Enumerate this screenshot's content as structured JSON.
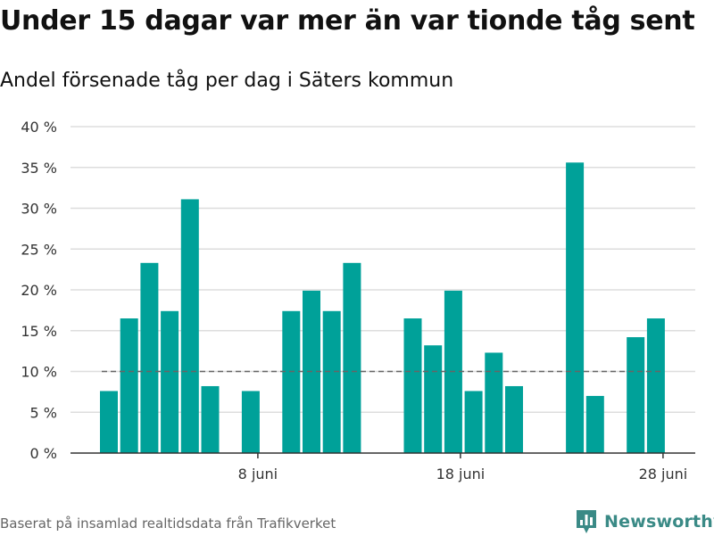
{
  "title": "Under 15 dagar var mer än var tionde tåg sent",
  "subtitle": "Andel försenade tåg per dag i Säters kommun",
  "source": "Baserat på insamlad realtidsdata från Trafikverket",
  "brand": {
    "name": "Newsworthy",
    "icon": "newsworthy-logo-icon"
  },
  "colors": {
    "bar": "#00a199",
    "grid": "#dddddd",
    "reference": "#666666",
    "axis": "#333333"
  },
  "chart_data": {
    "type": "bar",
    "categories": [
      "1 juni",
      "2 juni",
      "3 juni",
      "4 juni",
      "5 juni",
      "6 juni",
      "7 juni",
      "8 juni",
      "9 juni",
      "10 juni",
      "11 juni",
      "12 juni",
      "13 juni",
      "14 juni",
      "15 juni",
      "16 juni",
      "17 juni",
      "18 juni",
      "19 juni",
      "20 juni",
      "21 juni",
      "22 juni",
      "23 juni",
      "24 juni",
      "25 juni",
      "26 juni",
      "27 juni",
      "28 juni",
      "29 juni"
    ],
    "values": [
      7.6,
      16.5,
      23.3,
      17.4,
      31.1,
      8.2,
      0,
      7.6,
      0,
      17.4,
      19.9,
      17.4,
      23.3,
      0,
      0,
      16.5,
      13.2,
      19.9,
      7.6,
      12.3,
      8.2,
      0,
      0,
      35.6,
      7.0,
      0,
      14.2,
      16.5,
      0
    ],
    "reference_line": 10,
    "ylim": [
      0,
      40
    ],
    "yticks": [
      0,
      5,
      10,
      15,
      20,
      25,
      30,
      35,
      40
    ],
    "ytick_labels": [
      "0 %",
      "5 %",
      "10 %",
      "15 %",
      "20 %",
      "25 %",
      "30 %",
      "35 %",
      "40 %"
    ],
    "xticks": [
      {
        "category": "8 juni",
        "label": "8 juni"
      },
      {
        "category": "18 juni",
        "label": "18 juni"
      },
      {
        "category": "28 juni",
        "label": "28 juni"
      }
    ],
    "grid": true,
    "legend": "none"
  }
}
